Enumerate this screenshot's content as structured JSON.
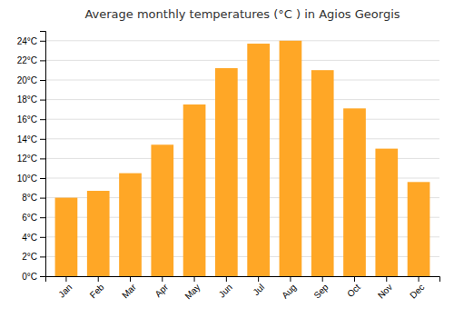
{
  "chart_data": {
    "type": "bar",
    "title": "Average monthly temperatures (°C ) in Agios Georgis",
    "categories": [
      "Jan",
      "Feb",
      "Mar",
      "Apr",
      "May",
      "Jun",
      "Jul",
      "Aug",
      "Sep",
      "Oct",
      "Nov",
      "Dec"
    ],
    "values": [
      8.0,
      8.7,
      10.5,
      13.4,
      17.5,
      21.2,
      23.7,
      24.0,
      21.0,
      17.1,
      13.0,
      9.6
    ],
    "color": "#FFA726",
    "ylim": [
      0,
      25
    ],
    "yticks": [
      {
        "value": 0,
        "label": "0°C"
      },
      {
        "value": 2,
        "label": "2°C"
      },
      {
        "value": 4,
        "label": "4°C"
      },
      {
        "value": 6,
        "label": "6°C"
      },
      {
        "value": 8,
        "label": "8°C"
      },
      {
        "value": 10,
        "label": "10°C"
      },
      {
        "value": 12,
        "label": "12°C"
      },
      {
        "value": 14,
        "label": "14°C"
      },
      {
        "value": 16,
        "label": "16°C"
      },
      {
        "value": 18,
        "label": "18°C"
      },
      {
        "value": 20,
        "label": "20°C"
      },
      {
        "value": 22,
        "label": "22°C"
      },
      {
        "value": 24,
        "label": "24°C"
      }
    ],
    "grid": true
  }
}
